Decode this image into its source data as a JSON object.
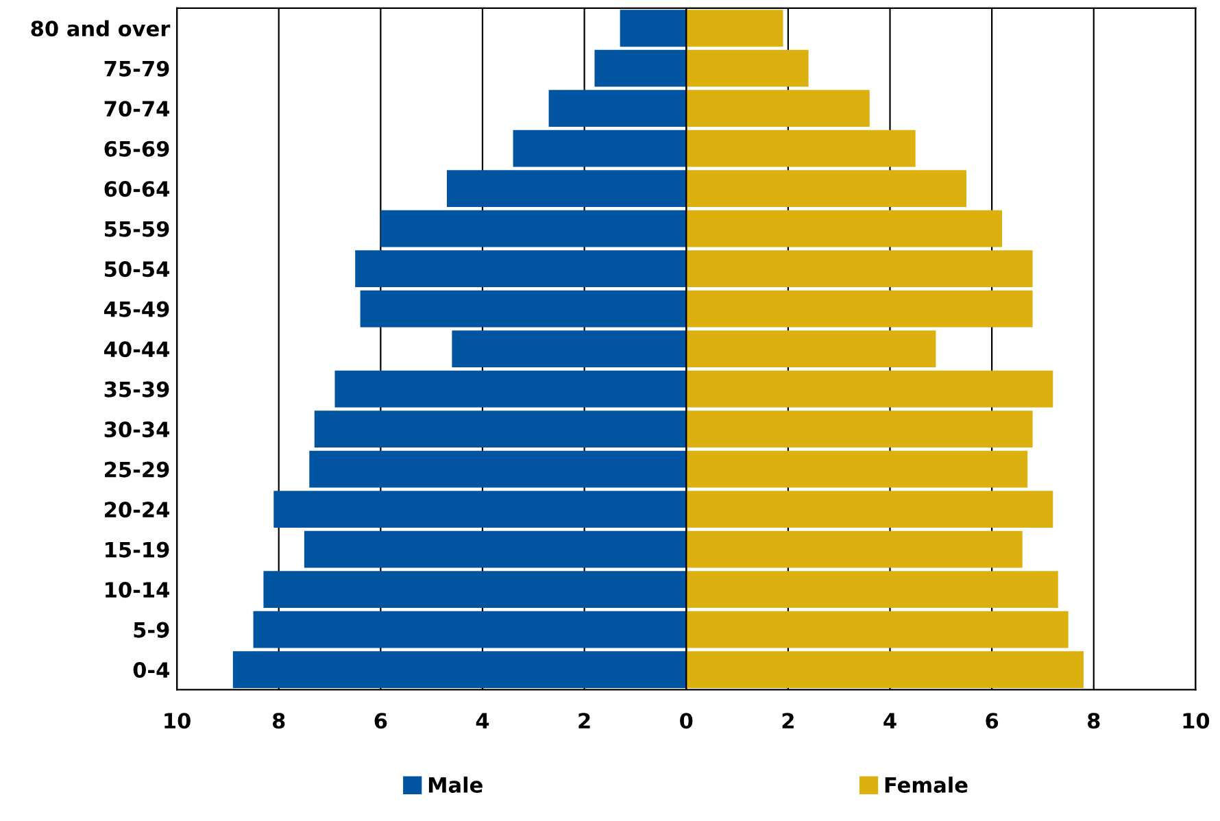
{
  "chart_data": {
    "type": "bar",
    "orientation": "horizontal",
    "stacked": true,
    "categories": [
      "80 and over",
      "75-79",
      "70-74",
      "65-69",
      "60-64",
      "55-59",
      "50-54",
      "45-49",
      "40-44",
      "35-39",
      "30-34",
      "25-29",
      "20-24",
      "15-19",
      "10-14",
      "5-9",
      "0-4"
    ],
    "series": [
      {
        "name": "Male",
        "color": "#0054a0",
        "values": [
          -1.3,
          -1.8,
          -2.7,
          -3.4,
          -4.7,
          -6.0,
          -6.5,
          -6.4,
          -4.6,
          -6.9,
          -7.3,
          -7.4,
          -8.1,
          -7.5,
          -8.3,
          -8.5,
          -8.9
        ]
      },
      {
        "name": "Female",
        "color": "#dcb00f",
        "values": [
          1.9,
          2.4,
          3.6,
          4.5,
          5.5,
          6.2,
          6.8,
          6.8,
          4.9,
          7.2,
          6.8,
          6.7,
          7.2,
          6.6,
          7.3,
          7.5,
          7.8
        ]
      }
    ],
    "xlim": [
      -10,
      10
    ],
    "xticks": [
      {
        "value": -10,
        "label": "10"
      },
      {
        "value": -8,
        "label": "8"
      },
      {
        "value": -6,
        "label": "6"
      },
      {
        "value": -4,
        "label": "4"
      },
      {
        "value": -2,
        "label": "2"
      },
      0,
      2,
      4,
      6,
      8,
      10
    ],
    "grid": "x",
    "legend": "bottom"
  }
}
